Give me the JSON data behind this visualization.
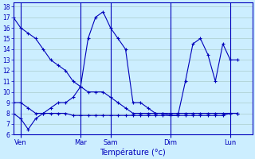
{
  "xlabel": "Température (°c)",
  "bg_color": "#cceeff",
  "line_color": "#0000bb",
  "grid_color": "#aacccc",
  "ylim": [
    6,
    18.4
  ],
  "yticks": [
    6,
    7,
    8,
    9,
    10,
    11,
    12,
    13,
    14,
    15,
    16,
    17,
    18
  ],
  "day_labels": [
    "Ven",
    "Mar",
    "Sam",
    "Dim",
    "Lun"
  ],
  "day_positions": [
    1,
    9,
    13,
    21,
    29
  ],
  "xlim": [
    0,
    32
  ],
  "n_points": 31,
  "line1_y": [
    17,
    16,
    15.5,
    15,
    14,
    13,
    12.5,
    12,
    11,
    10.5,
    10,
    10,
    10,
    9.5,
    9,
    8.5,
    8,
    8,
    8,
    8,
    8,
    8,
    8,
    8,
    8,
    8,
    8,
    8,
    8,
    8,
    8
  ],
  "line2_y": [
    9,
    9,
    8.5,
    8,
    8,
    8,
    8,
    8,
    7.8,
    7.8,
    7.8,
    7.8,
    7.8,
    7.8,
    7.8,
    7.8,
    7.8,
    7.8,
    7.8,
    7.8,
    7.8,
    7.8,
    7.8,
    7.8,
    7.8,
    7.8,
    7.8,
    7.8,
    7.8,
    8,
    8
  ],
  "line3_y": [
    8,
    7.5,
    6.5,
    7.5,
    8,
    8.5,
    9,
    9,
    9.5,
    10.5,
    15,
    17,
    17.5,
    16,
    15,
    14,
    9,
    9,
    8.5,
    8,
    8,
    7.8,
    7.8,
    11,
    14.5,
    15,
    13.5,
    11,
    14.5,
    13,
    13
  ]
}
